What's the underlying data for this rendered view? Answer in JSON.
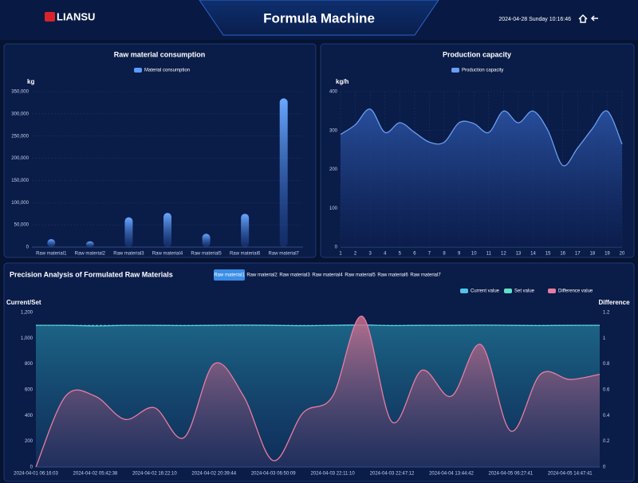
{
  "header": {
    "logo": "LIANSU",
    "title": "Formula Machine",
    "datetime": "2024-04-28 Sunday 10:16:46"
  },
  "tabs": {
    "items": [
      "Raw material1",
      "Raw material2",
      "Raw material3",
      "Raw material4",
      "Raw material5",
      "Raw material6",
      "Raw material7"
    ],
    "active": 0
  },
  "chart_data": [
    {
      "type": "bar",
      "title": "Raw material consumption",
      "y_label": "kg",
      "categories": [
        "Raw material1",
        "Raw material2",
        "Raw material3",
        "Raw material4",
        "Raw material5",
        "Raw material6",
        "Raw material7"
      ],
      "series": [
        {
          "name": "Material consumption",
          "color": "#5b9bff",
          "values": [
            18000,
            13000,
            67000,
            77000,
            30000,
            75000,
            335000
          ]
        }
      ],
      "ylim": [
        0,
        350000
      ],
      "yticks": [
        0,
        {
          "value": 50000,
          "label": "50,000"
        },
        {
          "value": 100000,
          "label": "100,000"
        },
        {
          "value": 150000,
          "label": "150,000"
        },
        {
          "value": 200000,
          "label": "200,000"
        },
        {
          "value": 250000,
          "label": "250,000"
        },
        {
          "value": 300000,
          "label": "300,000"
        },
        {
          "value": 350000,
          "label": "350,000"
        }
      ],
      "grid": true
    },
    {
      "type": "line",
      "title": "Production capacity",
      "y_label": "kg/h",
      "area": true,
      "x": [
        1,
        2,
        3,
        4,
        5,
        6,
        7,
        8,
        9,
        10,
        11,
        12,
        13,
        14,
        15,
        16,
        17,
        18,
        19,
        20
      ],
      "series": [
        {
          "name": "Production capacity",
          "color": "#6a9ef0",
          "values": [
            290,
            315,
            355,
            295,
            320,
            295,
            270,
            270,
            320,
            318,
            295,
            350,
            320,
            350,
            300,
            210,
            255,
            305,
            350,
            265
          ]
        }
      ],
      "xlim": [
        1,
        20
      ],
      "xticks": [
        1,
        2,
        3,
        4,
        5,
        6,
        7,
        8,
        9,
        10,
        11,
        12,
        13,
        14,
        15,
        16,
        17,
        18,
        19,
        20
      ],
      "ylim": [
        0,
        400
      ],
      "yticks": [
        0,
        100,
        200,
        300,
        400
      ],
      "grid": true
    },
    {
      "type": "dual",
      "title": "Precision Analysis of Formulated Raw Materials",
      "y_label": "Current/Set",
      "y2_label": "Difference",
      "categories": [
        "2024-04-01 06:16:03",
        null,
        "2024-04-02 05:42:38",
        null,
        "2024-04-02 16:22:10",
        null,
        "2024-04-02 20:39:44",
        null,
        "2024-04-03 06:50:09",
        null,
        "2024-04-03 22:11:10",
        null,
        "2024-04-03 22:47:12",
        null,
        "2024-04-04 13:44:42",
        null,
        "2024-04-05 06:27:41",
        null,
        "2024-04-05 14:47:41",
        null
      ],
      "series": [
        {
          "name": "Current value",
          "color": "#4fc3e8",
          "values": [
            1100,
            1100,
            1095,
            1100,
            1100,
            1098,
            1100,
            1102,
            1100,
            1097,
            1100,
            1103,
            1098,
            1100,
            1100,
            1102,
            1100,
            1098,
            1100,
            1100
          ]
        },
        {
          "name": "Set value",
          "color": "#5fe0c8",
          "values": [
            1100,
            1100,
            1100,
            1100,
            1100,
            1100,
            1100,
            1100,
            1100,
            1100,
            1100,
            1100,
            1100,
            1100,
            1100,
            1100,
            1100,
            1100,
            1100,
            1100
          ]
        },
        {
          "name": "Difference value",
          "color": "#e87ca0",
          "axis": "y2",
          "values": [
            0,
            0.55,
            0.55,
            0.37,
            0.46,
            0.23,
            0.8,
            0.55,
            0.05,
            0.42,
            0.55,
            1.17,
            0.35,
            0.75,
            0.55,
            0.95,
            0.28,
            0.72,
            0.68,
            0.72
          ]
        }
      ],
      "ylim": [
        0,
        1200
      ],
      "yticks": [
        0,
        200,
        400,
        600,
        800,
        {
          "value": 1000,
          "label": "1,000"
        },
        {
          "value": 1200,
          "label": "1,200"
        }
      ],
      "y2lim": [
        0,
        1.2
      ],
      "y2ticks": [
        0,
        0.2,
        0.4,
        0.6,
        0.8,
        1,
        1.2
      ]
    }
  ]
}
